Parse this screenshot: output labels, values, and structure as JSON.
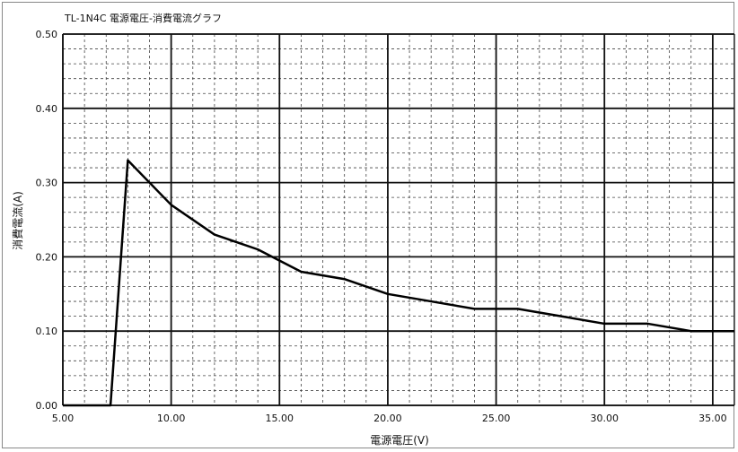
{
  "chart_data": {
    "type": "line",
    "title": "TL-1N4C 電源電圧-消費電流グラフ",
    "xlabel": "電源電圧(V)",
    "ylabel": "消費電流(A)",
    "xlim": [
      5.0,
      36.0
    ],
    "ylim": [
      0.0,
      0.5
    ],
    "x_ticks": [
      "5.00",
      "10.00",
      "15.00",
      "20.00",
      "25.00",
      "30.00",
      "35.00"
    ],
    "x_tick_values": [
      5,
      10,
      15,
      20,
      25,
      30,
      35
    ],
    "y_ticks": [
      "0.00",
      "0.10",
      "0.20",
      "0.30",
      "0.40",
      "0.50"
    ],
    "y_tick_values": [
      0.0,
      0.1,
      0.2,
      0.3,
      0.4,
      0.5
    ],
    "grid": true,
    "series": [
      {
        "x": [
          5,
          7.2,
          8,
          10,
          12,
          14,
          16,
          18,
          20,
          22,
          24,
          26,
          28,
          30,
          32,
          34,
          36
        ],
        "y": [
          0.0,
          0.0,
          0.33,
          0.27,
          0.23,
          0.21,
          0.18,
          0.17,
          0.15,
          0.14,
          0.13,
          0.13,
          0.12,
          0.11,
          0.11,
          0.1,
          0.1
        ],
        "color": "#000000"
      }
    ]
  }
}
